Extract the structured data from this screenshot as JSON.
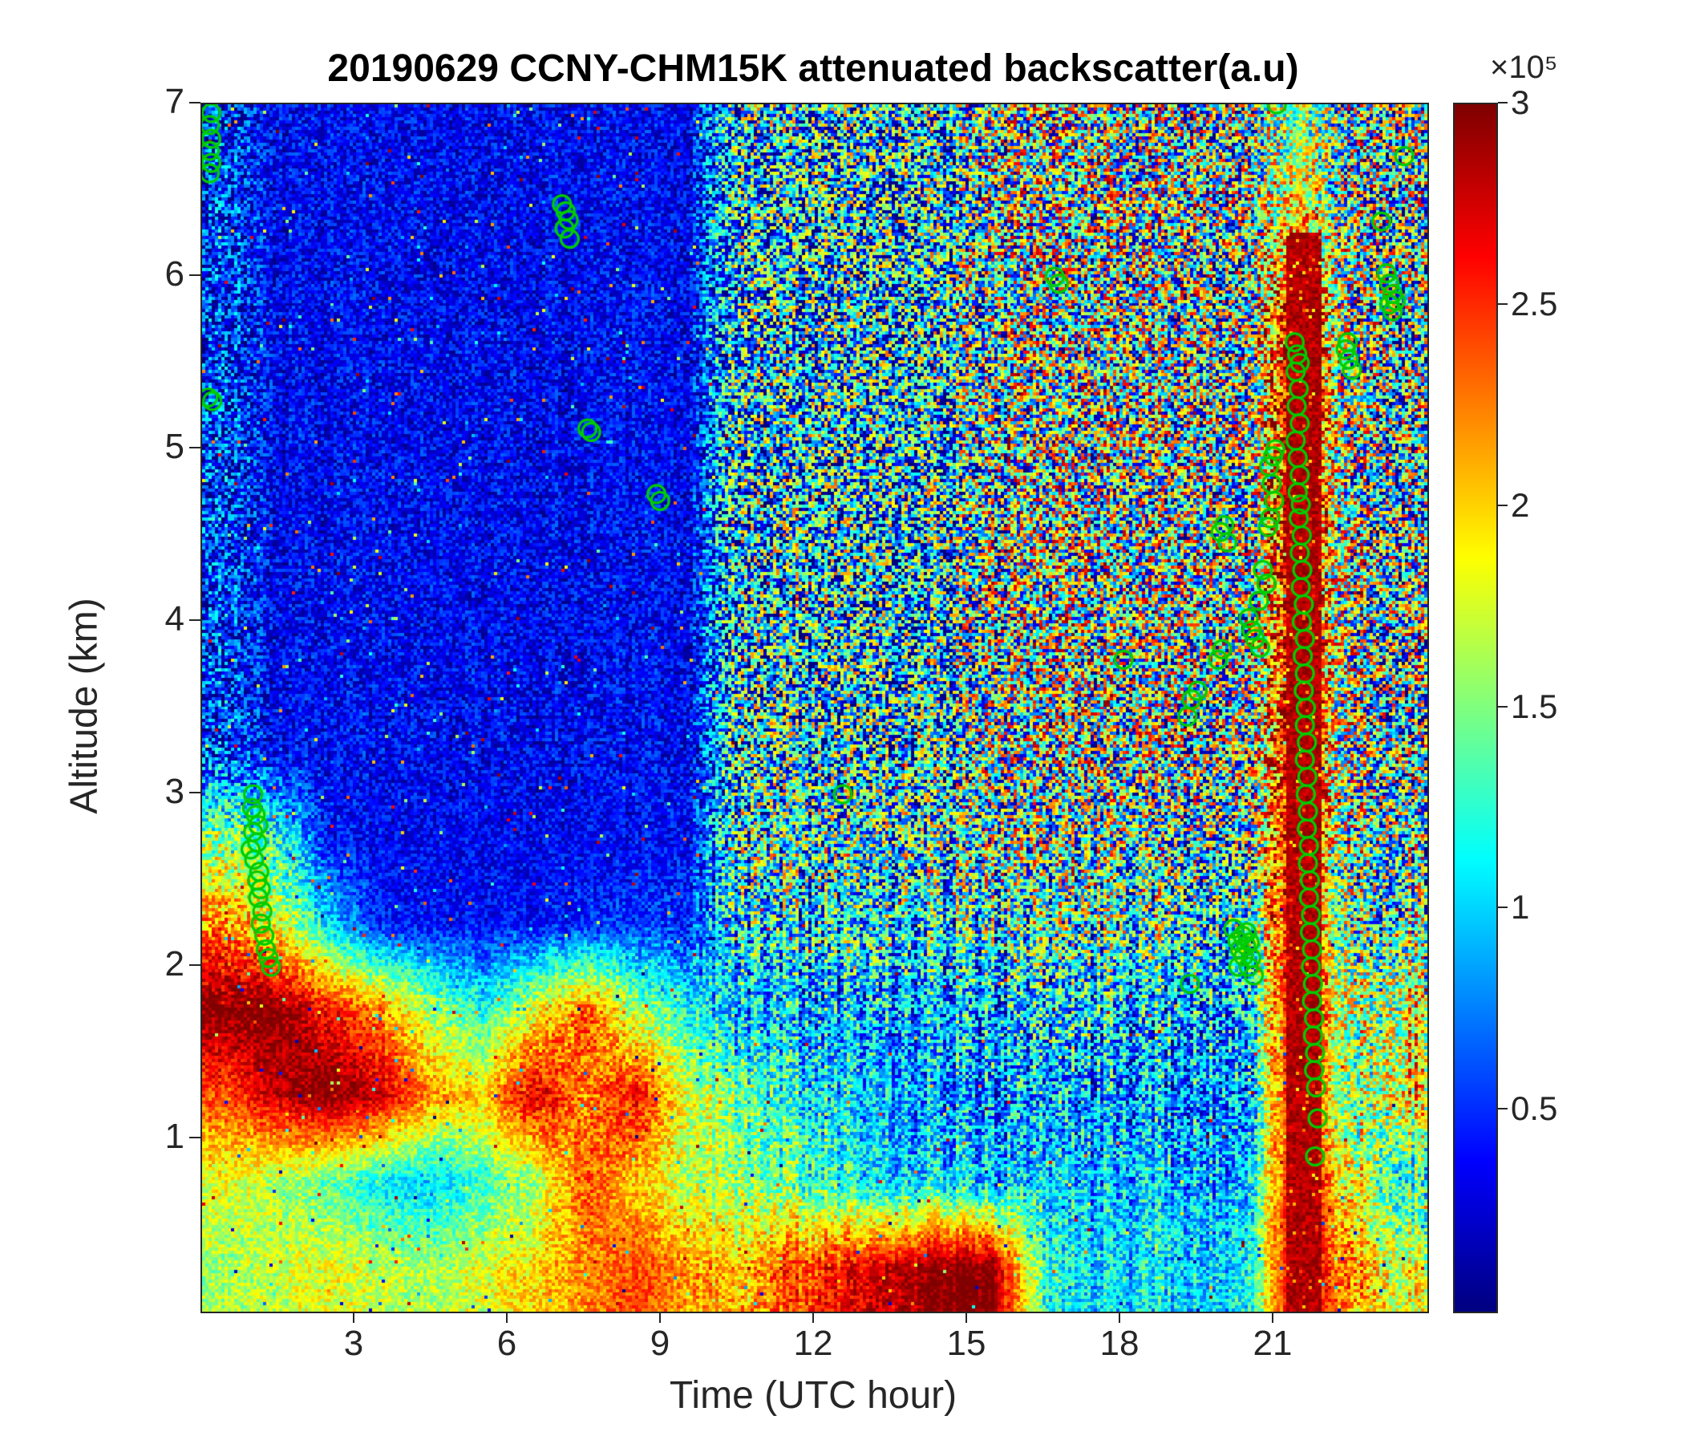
{
  "chart_data": {
    "type": "heatmap",
    "title": "20190629 CCNY-CHM15K attenuated backscatter(a.u)",
    "xlabel": "Time (UTC hour)",
    "ylabel": "Altitude (km)",
    "xlim": [
      0,
      24
    ],
    "ylim": [
      0,
      7
    ],
    "xticks": [
      3,
      6,
      9,
      12,
      15,
      18,
      21
    ],
    "yticks": [
      1,
      2,
      3,
      4,
      5,
      6,
      7
    ],
    "colormap": "jet",
    "grid_on": false,
    "colorbar": {
      "min": 0,
      "max": 3,
      "ticks": [
        0.5,
        1,
        1.5,
        2,
        2.5,
        3
      ],
      "multiplier": "×10⁵"
    },
    "colors": {
      "marker": "#00CC00",
      "axis": "#262626",
      "title": "#000000"
    },
    "grid": {
      "hours": 24,
      "alt_bands": 14,
      "alt_step_km": 0.5,
      "order": "rows from top band (6.5-7 km) to bottom band (0-0.5 km), 24 hourly columns, values in 1e5 a.u.",
      "mean": [
        [
          0.5,
          0.35,
          0.35,
          0.35,
          0.35,
          0.35,
          0.35,
          0.35,
          0.35,
          0.35,
          1.0,
          1.0,
          1.0,
          1.0,
          1.0,
          1.4,
          1.4,
          1.4,
          1.4,
          1.4,
          1.4,
          1.6,
          1.4,
          1.3
        ],
        [
          0.5,
          0.35,
          0.35,
          0.35,
          0.35,
          0.35,
          0.35,
          0.35,
          0.35,
          0.35,
          1.0,
          1.0,
          1.0,
          1.0,
          1.0,
          1.4,
          1.4,
          1.4,
          1.4,
          1.4,
          1.4,
          2.2,
          1.4,
          1.3
        ],
        [
          0.5,
          0.35,
          0.35,
          0.35,
          0.35,
          0.35,
          0.35,
          0.35,
          0.35,
          0.35,
          1.0,
          1.0,
          1.0,
          1.0,
          1.0,
          1.4,
          1.4,
          1.4,
          1.4,
          1.4,
          1.4,
          3.0,
          1.4,
          1.3
        ],
        [
          0.5,
          0.35,
          0.35,
          0.35,
          0.35,
          0.35,
          0.35,
          0.35,
          0.35,
          0.35,
          1.0,
          1.0,
          1.0,
          1.0,
          1.0,
          1.4,
          1.4,
          1.4,
          1.4,
          1.4,
          1.4,
          3.0,
          1.4,
          1.3
        ],
        [
          0.5,
          0.35,
          0.35,
          0.35,
          0.35,
          0.35,
          0.35,
          0.35,
          0.35,
          0.35,
          1.0,
          1.0,
          1.0,
          1.0,
          1.0,
          1.4,
          1.4,
          1.4,
          1.4,
          1.4,
          1.4,
          3.0,
          1.4,
          1.3
        ],
        [
          0.5,
          0.35,
          0.35,
          0.35,
          0.35,
          0.35,
          0.35,
          0.35,
          0.35,
          0.35,
          1.0,
          1.0,
          1.0,
          1.0,
          1.0,
          1.4,
          1.4,
          1.4,
          1.4,
          1.4,
          1.4,
          3.0,
          1.4,
          1.3
        ],
        [
          0.5,
          0.35,
          0.35,
          0.35,
          0.35,
          0.35,
          0.35,
          0.35,
          0.35,
          0.35,
          1.0,
          1.0,
          1.0,
          1.0,
          1.0,
          1.4,
          1.4,
          1.4,
          1.4,
          1.4,
          1.4,
          3.0,
          1.4,
          1.3
        ],
        [
          0.5,
          0.35,
          0.35,
          0.35,
          0.35,
          0.35,
          0.35,
          0.35,
          0.35,
          0.35,
          1.0,
          1.0,
          1.0,
          1.0,
          1.0,
          1.4,
          1.4,
          1.4,
          1.4,
          1.4,
          1.4,
          3.0,
          1.4,
          1.3
        ],
        [
          1.5,
          1.2,
          0.4,
          0.35,
          0.35,
          0.35,
          0.35,
          0.35,
          0.35,
          0.4,
          1.1,
          1.2,
          1.2,
          1.2,
          1.2,
          1.3,
          1.3,
          1.3,
          1.3,
          1.3,
          1.3,
          3.0,
          1.4,
          1.3
        ],
        [
          2.2,
          1.8,
          1.0,
          0.4,
          0.4,
          0.4,
          0.4,
          0.45,
          0.5,
          0.5,
          1.0,
          1.1,
          1.1,
          1.1,
          1.1,
          1.2,
          1.2,
          1.2,
          1.2,
          1.2,
          1.2,
          3.0,
          1.3,
          1.3
        ],
        [
          3.0,
          3.0,
          2.6,
          2.2,
          1.6,
          1.2,
          1.8,
          2.4,
          1.6,
          1.2,
          0.9,
          0.9,
          0.9,
          0.9,
          0.9,
          0.9,
          0.9,
          0.9,
          0.9,
          0.9,
          1.0,
          3.0,
          1.6,
          1.8
        ],
        [
          2.4,
          2.8,
          3.0,
          2.8,
          2.2,
          2.0,
          2.8,
          2.2,
          2.6,
          1.8,
          1.4,
          1.2,
          1.0,
          0.9,
          0.8,
          0.8,
          0.8,
          0.8,
          0.8,
          0.8,
          0.9,
          3.0,
          1.4,
          2.0
        ],
        [
          1.8,
          1.6,
          1.4,
          1.1,
          1.0,
          1.3,
          1.6,
          2.4,
          2.0,
          1.7,
          1.5,
          1.4,
          1.2,
          1.0,
          1.1,
          0.9,
          1.0,
          0.9,
          1.0,
          0.9,
          1.0,
          3.0,
          1.8,
          1.2
        ],
        [
          1.6,
          1.7,
          1.8,
          1.7,
          1.6,
          1.8,
          2.0,
          2.2,
          2.4,
          2.2,
          2.0,
          2.4,
          2.6,
          2.8,
          3.0,
          3.0,
          1.2,
          1.0,
          1.1,
          1.0,
          1.2,
          3.0,
          2.2,
          1.8
        ]
      ],
      "noise": [
        [
          1.2,
          0.55,
          0.55,
          0.55,
          0.55,
          0.55,
          0.55,
          0.55,
          0.55,
          0.55,
          2.2,
          2.2,
          2.2,
          2.2,
          2.2,
          2.5,
          2.5,
          2.5,
          2.5,
          2.5,
          2.5,
          1.0,
          2.5,
          2.5
        ],
        [
          1.2,
          0.55,
          0.55,
          0.55,
          0.55,
          0.55,
          0.55,
          0.55,
          0.55,
          0.55,
          2.2,
          2.2,
          2.2,
          2.2,
          2.2,
          2.5,
          2.5,
          2.5,
          2.5,
          2.5,
          2.5,
          1.0,
          2.5,
          2.5
        ],
        [
          1.2,
          0.55,
          0.55,
          0.55,
          0.55,
          0.55,
          0.55,
          0.55,
          0.55,
          0.55,
          2.2,
          2.2,
          2.2,
          2.2,
          2.2,
          2.5,
          2.5,
          2.5,
          2.5,
          2.5,
          2.5,
          0.8,
          2.5,
          2.5
        ],
        [
          1.2,
          0.55,
          0.55,
          0.55,
          0.55,
          0.55,
          0.55,
          0.55,
          0.55,
          0.55,
          2.2,
          2.2,
          2.2,
          2.2,
          2.2,
          2.5,
          2.5,
          2.5,
          2.5,
          2.5,
          2.5,
          0.8,
          2.5,
          2.5
        ],
        [
          1.2,
          0.55,
          0.55,
          0.55,
          0.55,
          0.55,
          0.55,
          0.55,
          0.55,
          0.55,
          2.2,
          2.2,
          2.2,
          2.2,
          2.2,
          2.5,
          2.5,
          2.5,
          2.5,
          2.5,
          2.5,
          0.8,
          2.5,
          2.5
        ],
        [
          1.2,
          0.55,
          0.55,
          0.55,
          0.55,
          0.55,
          0.55,
          0.55,
          0.55,
          0.55,
          2.2,
          2.2,
          2.2,
          2.2,
          2.2,
          2.5,
          2.5,
          2.5,
          2.5,
          2.5,
          2.5,
          0.8,
          2.5,
          2.5
        ],
        [
          1.2,
          0.55,
          0.55,
          0.55,
          0.55,
          0.55,
          0.55,
          0.55,
          0.55,
          0.55,
          2.2,
          2.2,
          2.2,
          2.2,
          2.2,
          2.5,
          2.5,
          2.5,
          2.5,
          2.5,
          2.5,
          0.8,
          2.5,
          2.5
        ],
        [
          1.2,
          0.55,
          0.55,
          0.55,
          0.55,
          0.55,
          0.55,
          0.55,
          0.55,
          0.55,
          2.2,
          2.2,
          2.2,
          2.2,
          2.2,
          2.5,
          2.5,
          2.5,
          2.5,
          2.5,
          2.5,
          0.8,
          2.5,
          2.5
        ],
        [
          1.0,
          0.9,
          0.5,
          0.45,
          0.45,
          0.45,
          0.45,
          0.45,
          0.45,
          0.5,
          2.0,
          2.0,
          2.0,
          2.0,
          2.0,
          2.2,
          2.2,
          2.2,
          2.2,
          2.2,
          2.2,
          0.6,
          2.2,
          2.2
        ],
        [
          0.8,
          0.8,
          0.6,
          0.45,
          0.45,
          0.45,
          0.45,
          0.5,
          0.5,
          0.6,
          1.6,
          1.6,
          1.6,
          1.6,
          1.6,
          1.8,
          1.8,
          1.8,
          1.8,
          1.8,
          1.8,
          0.5,
          1.8,
          1.8
        ],
        [
          0.4,
          0.4,
          0.5,
          0.6,
          0.6,
          0.6,
          0.7,
          0.7,
          0.7,
          0.7,
          1.0,
          1.2,
          1.2,
          1.2,
          1.2,
          1.4,
          1.4,
          1.4,
          1.4,
          1.4,
          1.4,
          0.4,
          1.4,
          1.4
        ],
        [
          0.5,
          0.4,
          0.3,
          0.4,
          0.5,
          0.5,
          0.5,
          0.6,
          0.5,
          0.6,
          0.8,
          0.9,
          0.9,
          0.9,
          1.0,
          1.2,
          1.2,
          1.2,
          1.2,
          1.2,
          1.2,
          0.3,
          1.2,
          1.2
        ],
        [
          0.5,
          0.5,
          0.5,
          0.5,
          0.5,
          0.5,
          0.6,
          0.5,
          0.5,
          0.6,
          0.7,
          0.8,
          0.8,
          0.8,
          0.8,
          0.9,
          0.9,
          0.9,
          0.9,
          0.9,
          0.9,
          0.3,
          1.0,
          1.0
        ],
        [
          0.5,
          0.5,
          0.5,
          0.5,
          0.5,
          0.5,
          0.5,
          0.5,
          0.4,
          0.5,
          0.6,
          0.6,
          0.5,
          0.4,
          0.3,
          0.3,
          0.7,
          0.7,
          0.7,
          0.7,
          0.7,
          0.2,
          0.8,
          0.8
        ]
      ]
    },
    "saturated_column": {
      "t_start": 21.25,
      "t_end": 21.95,
      "alt_top": 6.25,
      "value": 3
    },
    "marker": {
      "shape": "circle",
      "radius_px": 11,
      "line_width": 3.2
    },
    "cloud_points": [
      [
        0.18,
        6.95
      ],
      [
        0.15,
        6.88
      ],
      [
        0.18,
        6.8
      ],
      [
        0.15,
        6.73
      ],
      [
        0.18,
        6.66
      ],
      [
        0.15,
        6.6
      ],
      [
        0.12,
        5.3
      ],
      [
        0.2,
        5.28
      ],
      [
        1.0,
        3.0
      ],
      [
        0.98,
        2.92
      ],
      [
        1.05,
        2.88
      ],
      [
        1.1,
        2.82
      ],
      [
        1.0,
        2.78
      ],
      [
        1.08,
        2.72
      ],
      [
        0.95,
        2.68
      ],
      [
        1.02,
        2.62
      ],
      [
        1.12,
        2.55
      ],
      [
        1.08,
        2.5
      ],
      [
        1.15,
        2.45
      ],
      [
        1.1,
        2.4
      ],
      [
        1.18,
        2.32
      ],
      [
        1.15,
        2.25
      ],
      [
        1.22,
        2.18
      ],
      [
        1.25,
        2.1
      ],
      [
        1.3,
        2.05
      ],
      [
        1.35,
        2.0
      ],
      [
        7.05,
        6.42
      ],
      [
        7.12,
        6.38
      ],
      [
        7.18,
        6.33
      ],
      [
        7.1,
        6.28
      ],
      [
        7.2,
        6.22
      ],
      [
        7.55,
        5.12
      ],
      [
        7.62,
        5.1
      ],
      [
        8.9,
        4.74
      ],
      [
        8.97,
        4.7
      ],
      [
        12.55,
        3.0
      ],
      [
        16.7,
        6.0
      ],
      [
        16.78,
        5.96
      ],
      [
        18.05,
        3.78
      ],
      [
        19.3,
        3.45
      ],
      [
        19.38,
        3.55
      ],
      [
        19.5,
        3.6
      ],
      [
        19.35,
        1.9
      ],
      [
        19.9,
        3.78
      ],
      [
        19.98,
        3.84
      ],
      [
        19.95,
        4.52
      ],
      [
        20.02,
        4.56
      ],
      [
        20.08,
        4.46
      ],
      [
        20.2,
        2.22
      ],
      [
        20.28,
        2.15
      ],
      [
        20.33,
        2.1
      ],
      [
        20.4,
        2.06
      ],
      [
        20.45,
        2.12
      ],
      [
        20.5,
        2.0
      ],
      [
        20.55,
        2.05
      ],
      [
        20.3,
        2.0
      ],
      [
        20.46,
        2.2
      ],
      [
        20.6,
        1.95
      ],
      [
        20.38,
        2.18
      ],
      [
        20.52,
        2.14
      ],
      [
        20.5,
        4.02
      ],
      [
        20.56,
        3.95
      ],
      [
        20.62,
        3.9
      ],
      [
        20.7,
        4.12
      ],
      [
        20.78,
        4.3
      ],
      [
        20.85,
        4.22
      ],
      [
        20.72,
        3.85
      ],
      [
        20.9,
        4.9
      ],
      [
        20.98,
        4.96
      ],
      [
        21.02,
        5.0
      ],
      [
        20.95,
        4.8
      ],
      [
        21.0,
        4.7
      ],
      [
        20.92,
        4.6
      ],
      [
        20.88,
        4.55
      ],
      [
        21.05,
        7.0
      ],
      [
        21.4,
        5.62
      ],
      [
        21.45,
        5.55
      ],
      [
        21.5,
        5.5
      ],
      [
        21.42,
        5.45
      ],
      [
        21.48,
        5.35
      ],
      [
        21.44,
        5.25
      ],
      [
        21.5,
        5.15
      ],
      [
        21.42,
        5.05
      ],
      [
        21.46,
        4.95
      ],
      [
        21.5,
        4.85
      ],
      [
        21.46,
        4.75
      ],
      [
        21.52,
        4.68
      ],
      [
        21.48,
        4.6
      ],
      [
        21.54,
        4.5
      ],
      [
        21.5,
        4.4
      ],
      [
        21.55,
        4.3
      ],
      [
        21.52,
        4.2
      ],
      [
        21.58,
        4.1
      ],
      [
        21.54,
        4.0
      ],
      [
        21.6,
        3.9
      ],
      [
        21.56,
        3.8
      ],
      [
        21.6,
        3.7
      ],
      [
        21.58,
        3.6
      ],
      [
        21.62,
        3.5
      ],
      [
        21.6,
        3.4
      ],
      [
        21.64,
        3.3
      ],
      [
        21.6,
        3.2
      ],
      [
        21.65,
        3.1
      ],
      [
        21.62,
        3.0
      ],
      [
        21.66,
        2.9
      ],
      [
        21.64,
        2.8
      ],
      [
        21.68,
        2.7
      ],
      [
        21.66,
        2.6
      ],
      [
        21.7,
        2.5
      ],
      [
        21.68,
        2.4
      ],
      [
        21.72,
        2.3
      ],
      [
        21.7,
        2.2
      ],
      [
        21.74,
        2.1
      ],
      [
        21.72,
        2.0
      ],
      [
        21.76,
        1.9
      ],
      [
        21.74,
        1.8
      ],
      [
        21.78,
        1.7
      ],
      [
        21.76,
        1.6
      ],
      [
        21.8,
        1.5
      ],
      [
        21.78,
        1.4
      ],
      [
        21.82,
        1.3
      ],
      [
        21.85,
        1.12
      ],
      [
        21.8,
        0.9
      ],
      [
        22.4,
        5.58
      ],
      [
        22.46,
        5.52
      ],
      [
        22.52,
        5.46
      ],
      [
        22.44,
        5.62
      ],
      [
        23.1,
        6.32
      ],
      [
        23.2,
        6.02
      ],
      [
        23.26,
        5.96
      ],
      [
        23.32,
        5.9
      ],
      [
        23.26,
        5.84
      ],
      [
        23.32,
        5.8
      ],
      [
        23.38,
        5.86
      ],
      [
        23.55,
        6.7
      ]
    ]
  }
}
